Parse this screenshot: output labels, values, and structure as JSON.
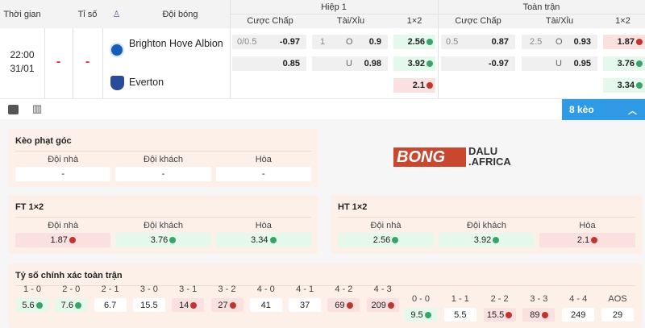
{
  "header": {
    "time": "Thời gian",
    "score": "Tỉ số",
    "team": "Đội bóng",
    "half1": "Hiệp 1",
    "full": "Toàn trận",
    "handicap": "Cược Chấp",
    "overunder": "Tài/Xỉu",
    "x12": "1×2"
  },
  "match": {
    "time": "22:00",
    "date": "31/01",
    "score1": "-",
    "score2": "-",
    "home": "Brighton Hove Albion",
    "away": "Everton"
  },
  "half1": {
    "hc": [
      {
        "line": "0/0.5",
        "odd": "-0.97"
      },
      {
        "line": "",
        "odd": "0.85"
      }
    ],
    "ou": [
      {
        "line": "1",
        "side": "O",
        "odd": "0.9"
      },
      {
        "line": "",
        "side": "U",
        "odd": "0.98"
      }
    ],
    "x12": [
      {
        "odd": "2.56",
        "trend": "up"
      },
      {
        "odd": "3.92",
        "trend": "up"
      },
      {
        "odd": "2.1",
        "trend": "down"
      }
    ]
  },
  "full": {
    "hc": [
      {
        "line": "0.5",
        "odd": "0.87"
      },
      {
        "line": "",
        "odd": "-0.97"
      }
    ],
    "ou": [
      {
        "line": "2.5",
        "side": "O",
        "odd": "0.93"
      },
      {
        "line": "",
        "side": "U",
        "odd": "0.95"
      }
    ],
    "x12": [
      {
        "odd": "1.87",
        "trend": "down"
      },
      {
        "odd": "3.76",
        "trend": "up"
      },
      {
        "odd": "3.34",
        "trend": "up"
      }
    ]
  },
  "more_button": "8 kèo",
  "logo": "BONG DALU .AFRICA",
  "corner": {
    "title": "Kèo phạt góc",
    "labels": [
      "Đội nhà",
      "Đội khách",
      "Hòa"
    ],
    "values": [
      "-",
      "-",
      "-"
    ]
  },
  "ft": {
    "title": "FT 1×2",
    "labels": [
      "Đội nhà",
      "Đội khách",
      "Hòa"
    ],
    "values": [
      "1.87",
      "3.76",
      "3.34"
    ],
    "trends": [
      "down",
      "up",
      "up"
    ]
  },
  "ht": {
    "title": "HT 1×2",
    "labels": [
      "Đội nhà",
      "Đội khách",
      "Hòa"
    ],
    "values": [
      "2.56",
      "3.92",
      "2.1"
    ],
    "trends": [
      "up",
      "up",
      "down"
    ]
  },
  "exact": {
    "title": "Tỷ số chính xác toàn trận",
    "home": [
      {
        "s": "1 - 0",
        "v": "5.6",
        "t": "up"
      },
      {
        "s": "2 - 0",
        "v": "7.6",
        "t": "up"
      },
      {
        "s": "2 - 1",
        "v": "6.7",
        "t": ""
      },
      {
        "s": "3 - 0",
        "v": "15.5",
        "t": ""
      },
      {
        "s": "3 - 1",
        "v": "14",
        "t": "down"
      },
      {
        "s": "3 - 2",
        "v": "27",
        "t": "down"
      },
      {
        "s": "4 - 0",
        "v": "41",
        "t": ""
      },
      {
        "s": "4 - 1",
        "v": "37",
        "t": ""
      },
      {
        "s": "4 - 2",
        "v": "69",
        "t": "down"
      },
      {
        "s": "4 - 3",
        "v": "209",
        "t": "down"
      }
    ],
    "draw": [
      {
        "s": "0 - 0",
        "v": "9.5",
        "t": "up"
      },
      {
        "s": "1 - 1",
        "v": "5.5",
        "t": ""
      },
      {
        "s": "2 - 2",
        "v": "15.5",
        "t": "down"
      },
      {
        "s": "3 - 3",
        "v": "89",
        "t": "down"
      },
      {
        "s": "4 - 4",
        "v": "249",
        "t": ""
      },
      {
        "s": "AOS",
        "v": "29",
        "t": ""
      }
    ]
  },
  "colors": {
    "up_bg": "#e4f8ec",
    "down_bg": "#fbe0e0",
    "accent": "#2f9be6",
    "panel": "#fdf0e8"
  }
}
